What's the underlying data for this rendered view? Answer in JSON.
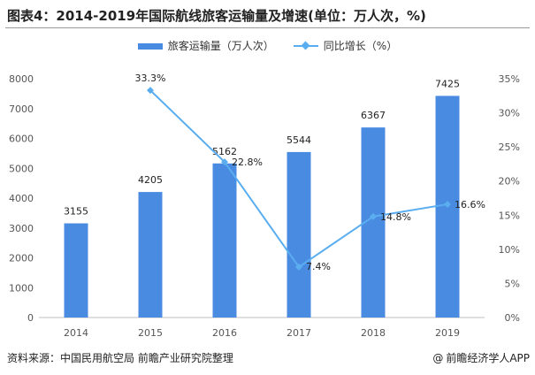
{
  "title": "图表4：2014-2019年国际航线旅客运输量及增速(单位：万人次，%)",
  "legend": {
    "bar_label": "旅客运输量（万人次）",
    "line_label": "同比增长（%）"
  },
  "colors": {
    "bar": "#4a8be2",
    "line": "#5aaef0"
  },
  "source": "资料来源：中国民用航空局 前瞻产业研究院整理",
  "brand": "前瞻经济学人APP",
  "brand_icon": "at-icon",
  "chart_data": {
    "type": "bar",
    "categories": [
      "2014",
      "2015",
      "2016",
      "2017",
      "2018",
      "2019"
    ],
    "series": [
      {
        "name": "旅客运输量（万人次）",
        "type": "bar",
        "axis": "left",
        "values": [
          3155,
          4205,
          5162,
          5544,
          6367,
          7425
        ],
        "labels": [
          "3155",
          "4205",
          "5162",
          "5544",
          "6367",
          "7425"
        ]
      },
      {
        "name": "同比增长（%）",
        "type": "line",
        "axis": "right",
        "values": [
          null,
          33.3,
          22.8,
          7.4,
          14.8,
          16.6
        ],
        "labels": [
          null,
          "33.3%",
          "22.8%",
          "7.4%",
          "14.8%",
          "16.6%"
        ]
      }
    ],
    "y_left": {
      "ticks": [
        0,
        1000,
        2000,
        3000,
        4000,
        5000,
        6000,
        7000,
        8000
      ],
      "ylim": [
        0,
        8000
      ]
    },
    "y_right": {
      "ticks": [
        0,
        5,
        10,
        15,
        20,
        25,
        30,
        35
      ],
      "tick_labels": [
        "0%",
        "5%",
        "10%",
        "15%",
        "20%",
        "25%",
        "30%",
        "35%"
      ],
      "ylim": [
        0,
        35
      ]
    },
    "grid": false,
    "legend_position": "top-center"
  }
}
